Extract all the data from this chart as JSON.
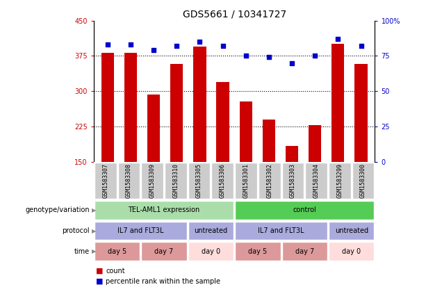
{
  "title": "GDS5661 / 10341727",
  "samples": [
    "GSM1583307",
    "GSM1583308",
    "GSM1583309",
    "GSM1583310",
    "GSM1583305",
    "GSM1583306",
    "GSM1583301",
    "GSM1583302",
    "GSM1583303",
    "GSM1583304",
    "GSM1583299",
    "GSM1583300"
  ],
  "counts": [
    382,
    382,
    293,
    358,
    395,
    320,
    278,
    240,
    183,
    228,
    400,
    358
  ],
  "percentiles": [
    83,
    83,
    79,
    82,
    85,
    82,
    75,
    74,
    70,
    75,
    87,
    82
  ],
  "ylim_left": [
    150,
    450
  ],
  "ylim_right": [
    0,
    100
  ],
  "yticks_left": [
    150,
    225,
    300,
    375,
    450
  ],
  "yticks_right": [
    0,
    25,
    50,
    75,
    100
  ],
  "yticklabels_right": [
    "0",
    "25",
    "50",
    "75",
    "100%"
  ],
  "hlines": [
    225,
    300,
    375
  ],
  "bar_color": "#cc0000",
  "dot_color": "#0000cc",
  "bar_width": 0.55,
  "genotype_labels": [
    {
      "label": "TEL-AML1 expression",
      "start": 0,
      "end": 6,
      "color": "#aaddaa"
    },
    {
      "label": "control",
      "start": 6,
      "end": 12,
      "color": "#55cc55"
    }
  ],
  "protocol_labels": [
    {
      "label": "IL7 and FLT3L",
      "start": 0,
      "end": 4,
      "color": "#aaaadd"
    },
    {
      "label": "untreated",
      "start": 4,
      "end": 6,
      "color": "#aaaadd"
    },
    {
      "label": "IL7 and FLT3L",
      "start": 6,
      "end": 10,
      "color": "#aaaadd"
    },
    {
      "label": "untreated",
      "start": 10,
      "end": 12,
      "color": "#aaaadd"
    }
  ],
  "time_labels": [
    {
      "label": "day 5",
      "start": 0,
      "end": 2,
      "color": "#dd9999"
    },
    {
      "label": "day 7",
      "start": 2,
      "end": 4,
      "color": "#dd9999"
    },
    {
      "label": "day 0",
      "start": 4,
      "end": 6,
      "color": "#ffdddd"
    },
    {
      "label": "day 5",
      "start": 6,
      "end": 8,
      "color": "#dd9999"
    },
    {
      "label": "day 7",
      "start": 8,
      "end": 10,
      "color": "#dd9999"
    },
    {
      "label": "day 0",
      "start": 10,
      "end": 12,
      "color": "#ffdddd"
    }
  ],
  "row_labels": [
    "genotype/variation",
    "protocol",
    "time"
  ],
  "arrow_color": "#888888",
  "bar_bottom": 150,
  "title_fontsize": 10,
  "tick_fontsize": 7,
  "label_fontsize": 7,
  "annotation_fontsize": 7,
  "sample_fontsize": 6
}
